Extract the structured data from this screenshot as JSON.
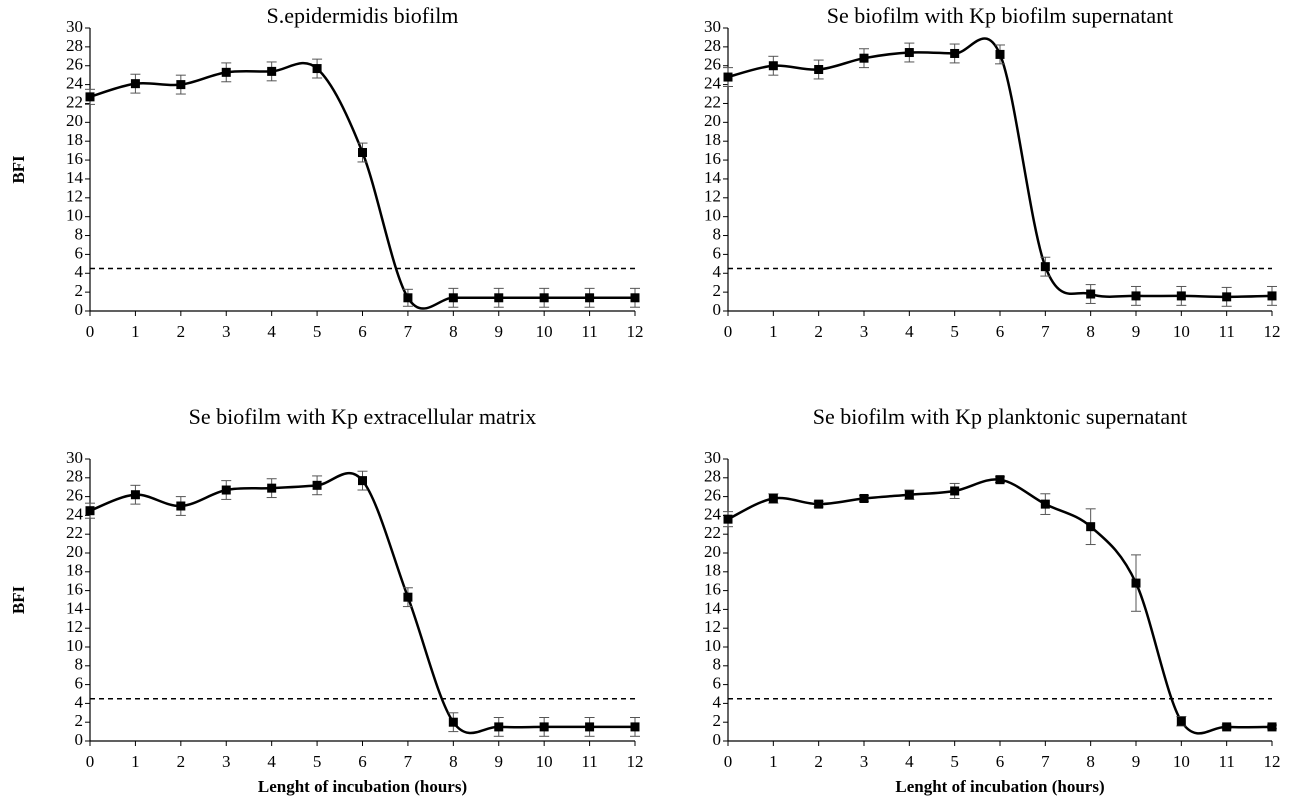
{
  "chart_data": [
    {
      "type": "line",
      "title": "S.epidermidis biofilm",
      "y_label": "BFI",
      "x": [
        0,
        1,
        2,
        3,
        4,
        5,
        6,
        7,
        8,
        9,
        10,
        11,
        12
      ],
      "xlim": [
        0,
        12
      ],
      "xticks": [
        0,
        1,
        2,
        3,
        4,
        5,
        6,
        7,
        8,
        9,
        10,
        11,
        12
      ],
      "ylim": [
        0,
        30
      ],
      "yticks": [
        0,
        2,
        4,
        6,
        8,
        10,
        12,
        14,
        16,
        18,
        20,
        22,
        24,
        26,
        28,
        30
      ],
      "series": [
        {
          "color": "#000000",
          "values": [
            22.7,
            24.1,
            24.0,
            25.3,
            25.4,
            25.7,
            16.8,
            1.4,
            1.4,
            1.4,
            1.4,
            1.4,
            1.4
          ],
          "errors": [
            0.8,
            1.0,
            1.0,
            1.0,
            1.0,
            1.0,
            1.0,
            0.9,
            1.0,
            1.0,
            1.0,
            1.0,
            1.0
          ]
        }
      ],
      "threshold": 4.5
    },
    {
      "type": "line",
      "title": "Se biofilm with Kp biofilm supernatant",
      "x": [
        0,
        1,
        2,
        3,
        4,
        5,
        6,
        7,
        8,
        9,
        10,
        11,
        12
      ],
      "xlim": [
        0,
        12
      ],
      "xticks": [
        0,
        1,
        2,
        3,
        4,
        5,
        6,
        7,
        8,
        9,
        10,
        11,
        12
      ],
      "ylim": [
        0,
        30
      ],
      "yticks": [
        0,
        2,
        4,
        6,
        8,
        10,
        12,
        14,
        16,
        18,
        20,
        22,
        24,
        26,
        28,
        30
      ],
      "series": [
        {
          "color": "#000000",
          "values": [
            24.8,
            26.0,
            25.6,
            26.8,
            27.4,
            27.3,
            27.2,
            4.7,
            1.8,
            1.6,
            1.6,
            1.5,
            1.6
          ],
          "errors": [
            1.0,
            1.0,
            1.0,
            1.0,
            1.0,
            1.0,
            1.0,
            1.0,
            1.0,
            1.0,
            1.0,
            1.0,
            1.0
          ]
        }
      ],
      "threshold": 4.5
    },
    {
      "type": "line",
      "title": "Se biofilm with Kp extracellular matrix",
      "y_label": "BFI",
      "x_label": "Lenght of incubation (hours)",
      "x": [
        0,
        1,
        2,
        3,
        4,
        5,
        6,
        7,
        8,
        9,
        10,
        11,
        12
      ],
      "xlim": [
        0,
        12
      ],
      "xticks": [
        0,
        1,
        2,
        3,
        4,
        5,
        6,
        7,
        8,
        9,
        10,
        11,
        12
      ],
      "ylim": [
        0,
        30
      ],
      "yticks": [
        0,
        2,
        4,
        6,
        8,
        10,
        12,
        14,
        16,
        18,
        20,
        22,
        24,
        26,
        28,
        30
      ],
      "series": [
        {
          "color": "#000000",
          "values": [
            24.5,
            26.2,
            25.0,
            26.7,
            26.9,
            27.2,
            27.7,
            15.3,
            2.0,
            1.5,
            1.5,
            1.5,
            1.5
          ],
          "errors": [
            0.8,
            1.0,
            1.0,
            1.0,
            1.0,
            1.0,
            1.0,
            1.0,
            1.0,
            1.0,
            1.0,
            1.0,
            1.0
          ]
        }
      ],
      "threshold": 4.5
    },
    {
      "type": "line",
      "title": "Se biofilm with Kp planktonic supernatant",
      "x_label": "Lenght of incubation (hours)",
      "x": [
        0,
        1,
        2,
        3,
        4,
        5,
        6,
        7,
        8,
        9,
        10,
        11,
        12
      ],
      "xlim": [
        0,
        12
      ],
      "xticks": [
        0,
        1,
        2,
        3,
        4,
        5,
        6,
        7,
        8,
        9,
        10,
        11,
        12
      ],
      "ylim": [
        0,
        30
      ],
      "yticks": [
        0,
        2,
        4,
        6,
        8,
        10,
        12,
        14,
        16,
        18,
        20,
        22,
        24,
        26,
        28,
        30
      ],
      "series": [
        {
          "color": "#000000",
          "values": [
            23.6,
            25.8,
            25.2,
            25.8,
            26.2,
            26.6,
            27.8,
            25.2,
            22.8,
            16.8,
            2.1,
            1.5,
            1.5
          ],
          "errors": [
            0.8,
            0.5,
            0.3,
            0.3,
            0.5,
            0.8,
            0.3,
            1.1,
            1.9,
            3.0,
            0.5,
            0.2,
            0.2
          ]
        }
      ],
      "threshold": 4.5
    }
  ]
}
